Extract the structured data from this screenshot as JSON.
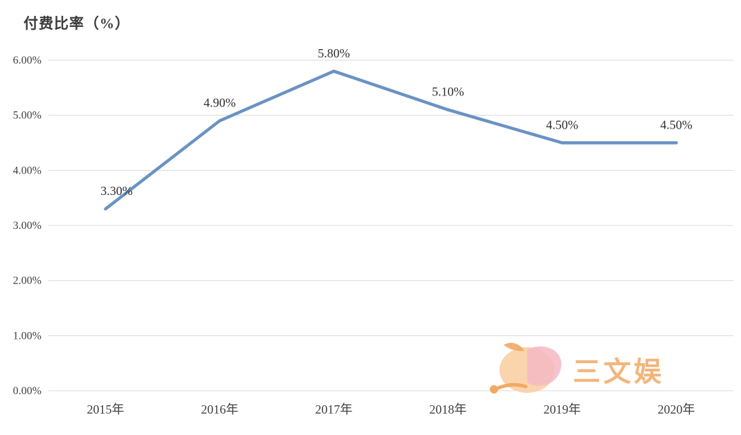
{
  "chart_data": {
    "type": "line",
    "title": "付费比率（%）",
    "categories": [
      "2015年",
      "2016年",
      "2017年",
      "2018年",
      "2019年",
      "2020年"
    ],
    "values": [
      3.3,
      4.9,
      5.8,
      5.1,
      4.5,
      4.5
    ],
    "point_labels": [
      "3.30%",
      "4.90%",
      "5.80%",
      "5.10%",
      "4.50%",
      "4.50%"
    ],
    "y_ticks": [
      "0.00%",
      "1.00%",
      "2.00%",
      "3.00%",
      "4.00%",
      "5.00%",
      "6.00%"
    ],
    "y_tick_values": [
      0,
      1,
      2,
      3,
      4,
      5,
      6
    ],
    "ylim": [
      0,
      6
    ],
    "grid": "horizontal",
    "legend": "none",
    "line_color": "#6a92c3",
    "grid_color": "#d9d9d9",
    "axis_text_color": "#3f3f3f",
    "label_text_color": "#2e2e2e"
  },
  "watermark": {
    "text": "三文娱",
    "accent_color": "#f2a964",
    "peach_color": "#f9cfa4",
    "petal_color": "#f4b9c4"
  }
}
